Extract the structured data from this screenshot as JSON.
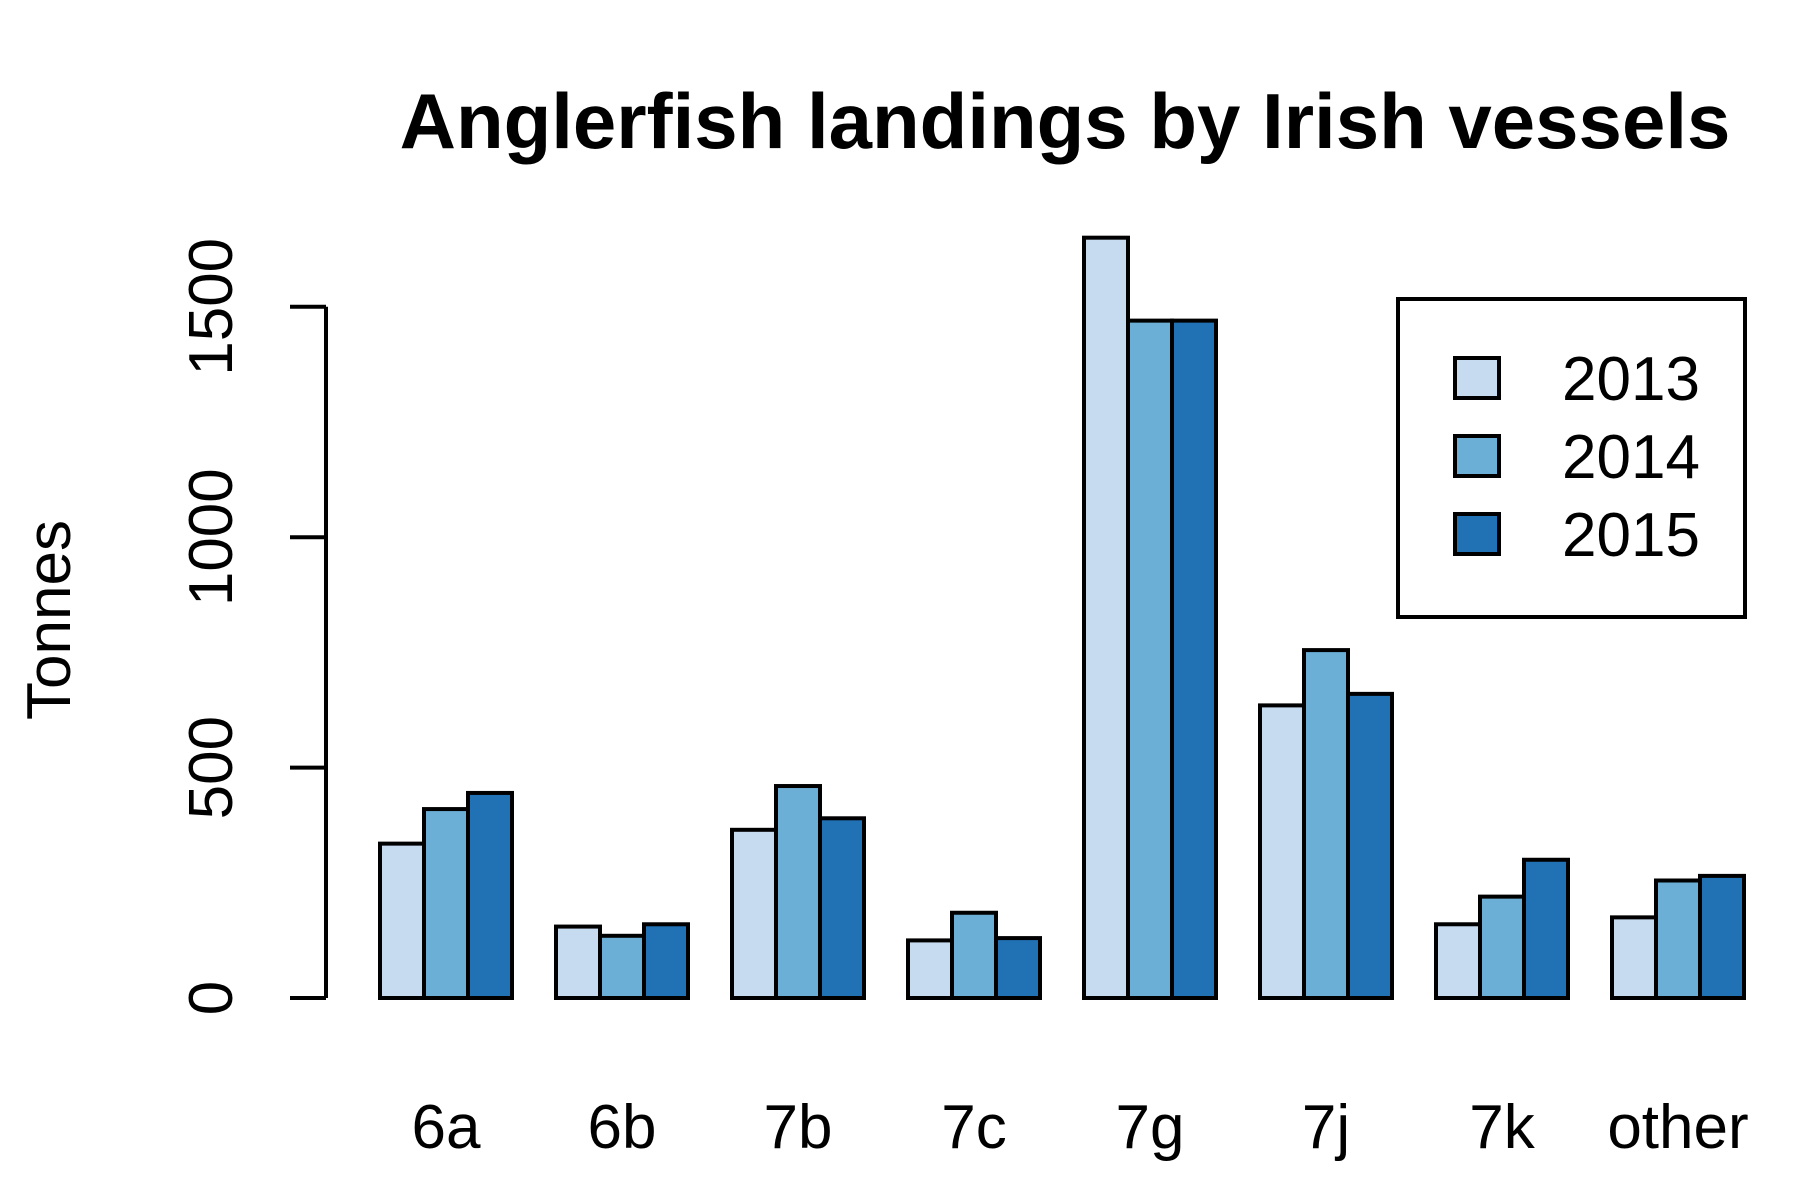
{
  "chart_data": {
    "type": "bar",
    "title": "Anglerfish landings by Irish vessels",
    "xlabel": "",
    "ylabel": "Tonnes",
    "categories": [
      "6a",
      "6b",
      "7b",
      "7c",
      "7g",
      "7j",
      "7k",
      "other"
    ],
    "series": [
      {
        "name": "2013",
        "color": "#c6dbef",
        "values": [
          335,
          155,
          365,
          125,
          1650,
          635,
          160,
          175
        ]
      },
      {
        "name": "2014",
        "color": "#6baed6",
        "values": [
          410,
          135,
          460,
          185,
          1470,
          755,
          220,
          255
        ]
      },
      {
        "name": "2015",
        "color": "#2171b5",
        "values": [
          445,
          160,
          390,
          130,
          1470,
          660,
          300,
          265
        ]
      }
    ],
    "yticks": [
      0,
      500,
      1000,
      1500
    ],
    "ylim": [
      0,
      1650
    ],
    "grid": false,
    "legend_position": "top-right"
  }
}
